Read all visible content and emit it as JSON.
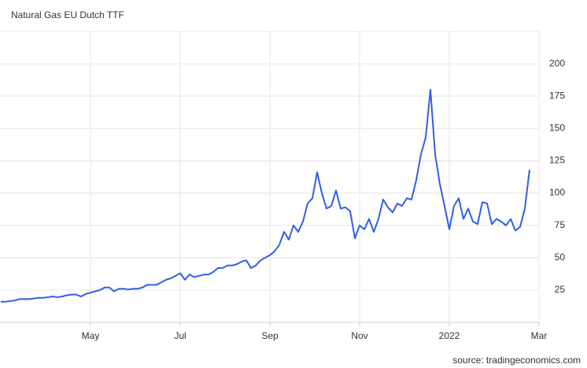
{
  "chart_data": {
    "type": "line",
    "title": "Natural Gas EU Dutch TTF",
    "source": "source: tradingeconomics.com",
    "categories": [
      null,
      null,
      null,
      null,
      null,
      null,
      null,
      null,
      null,
      null,
      null,
      null,
      null,
      null,
      null,
      null,
      null,
      null,
      null,
      "May",
      null,
      null,
      null,
      null,
      null,
      null,
      null,
      null,
      null,
      null,
      null,
      null,
      null,
      null,
      null,
      null,
      null,
      null,
      "Jul",
      null,
      null,
      null,
      null,
      null,
      null,
      null,
      null,
      null,
      null,
      null,
      null,
      null,
      null,
      null,
      null,
      null,
      null,
      "Sep",
      null,
      null,
      null,
      null,
      null,
      null,
      null,
      null,
      null,
      null,
      null,
      null,
      null,
      null,
      null,
      null,
      null,
      null,
      "Nov",
      null,
      null,
      null,
      null,
      null,
      null,
      null,
      null,
      null,
      null,
      null,
      null,
      null,
      null,
      null,
      null,
      null,
      null,
      "2022",
      null,
      null,
      null,
      null,
      null,
      null,
      null,
      null,
      null,
      null,
      null,
      null,
      null,
      null,
      null,
      null,
      null,
      null,
      "Mar"
    ],
    "series": [
      {
        "name": "Natural Gas EU Dutch TTF",
        "color": "#2f5ee8",
        "values": [
          16,
          16,
          16.5,
          17,
          18,
          18,
          18,
          18.5,
          19,
          19,
          19.5,
          20,
          19.5,
          20,
          21,
          21.5,
          21.5,
          20,
          22,
          23,
          24,
          25,
          27,
          27,
          24,
          26,
          26,
          25.5,
          26,
          26,
          27,
          29,
          29,
          29,
          31,
          33,
          34,
          36,
          38,
          33,
          37,
          35,
          36,
          37,
          37,
          39,
          42,
          42,
          44,
          44,
          45,
          47,
          48,
          42,
          44,
          48,
          50,
          52,
          55,
          60,
          70,
          64,
          75,
          70,
          78,
          92,
          96,
          116,
          100,
          88,
          90,
          102,
          88,
          89,
          86,
          65,
          75,
          72,
          80,
          70,
          80,
          95,
          89,
          85,
          92,
          90,
          96,
          95,
          110,
          130,
          143,
          180,
          130,
          107,
          90,
          72,
          90,
          96,
          80,
          88,
          78,
          76,
          93,
          92,
          76,
          80,
          78,
          75,
          80,
          71,
          74,
          88,
          118,
          null,
          null
        ]
      }
    ],
    "ylim": [
      0,
      225
    ],
    "yticks": [
      25,
      50,
      75,
      100,
      125,
      150,
      175,
      200
    ],
    "grid": true
  }
}
